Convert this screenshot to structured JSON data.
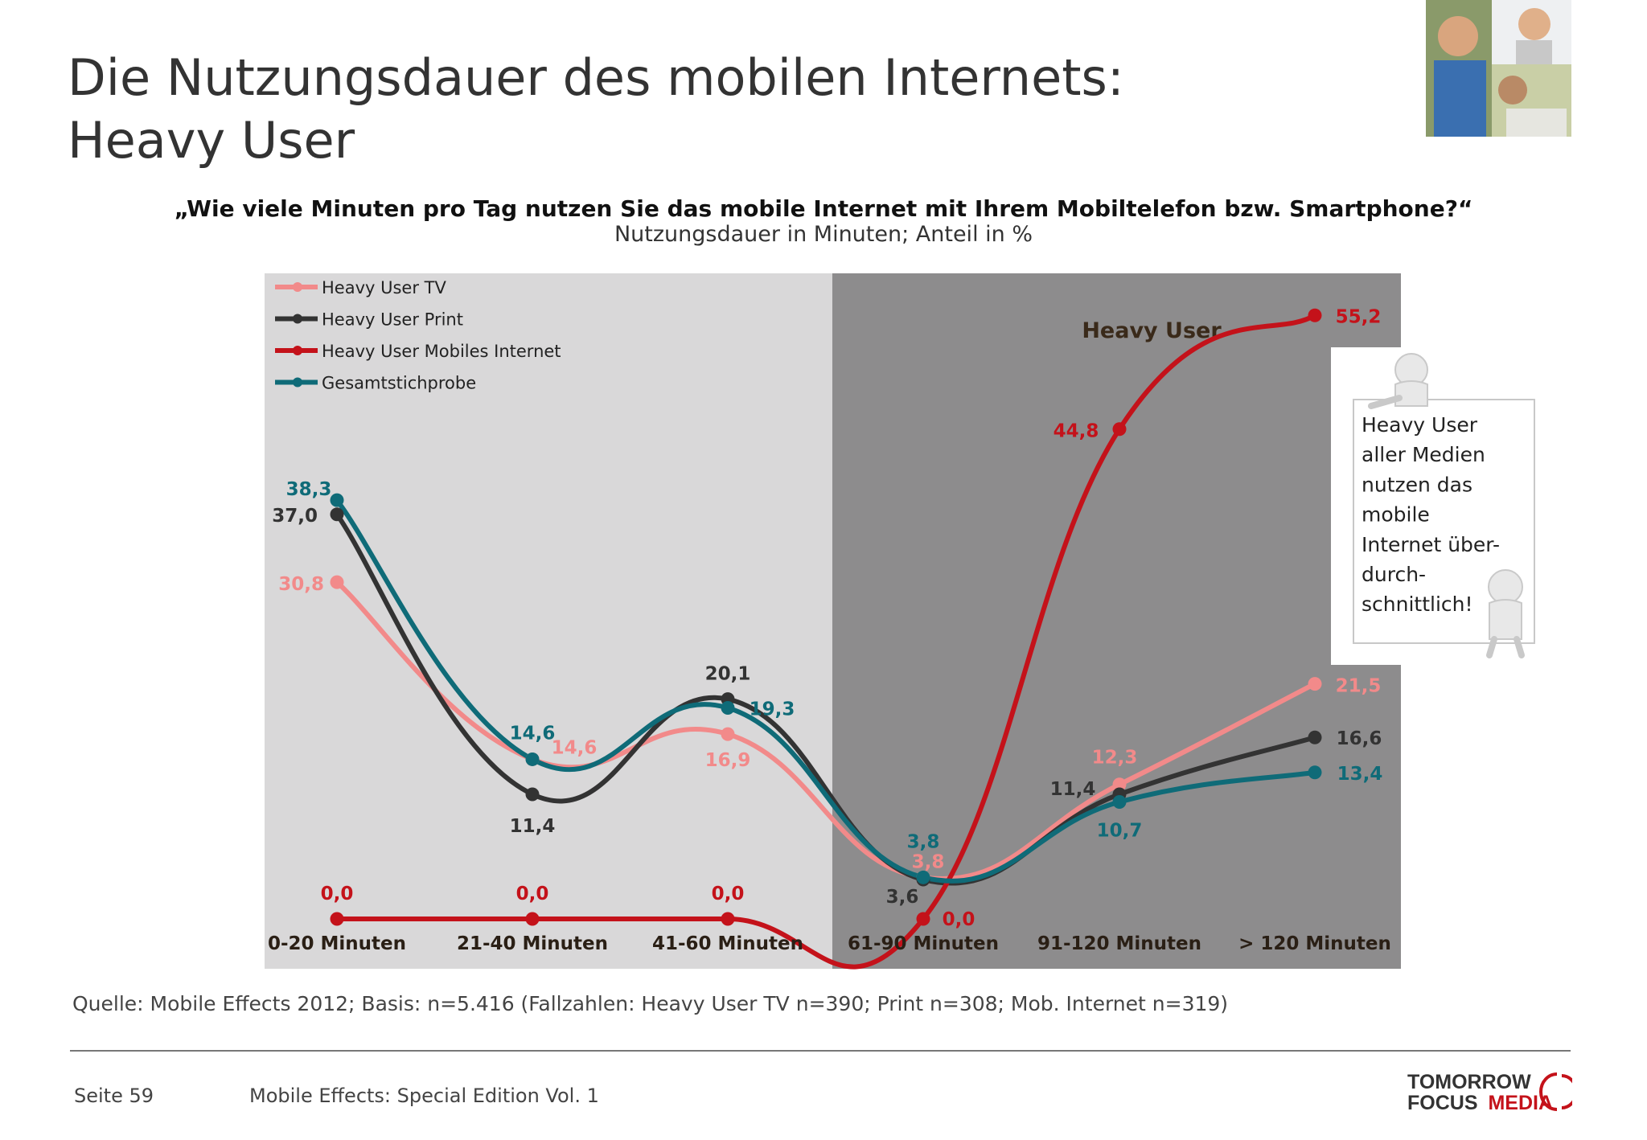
{
  "title": {
    "line1": "Die Nutzungsdauer des mobilen Internets:",
    "line2": "Heavy User"
  },
  "question": "„Wie viele Minuten pro Tag nutzen Sie das mobile Internet mit Ihrem Mobiltelefon bzw. Smartphone?“",
  "subtitle": "Nutzungsdauer in Minuten; Anteil in %",
  "shaded_region_label": "Heavy User",
  "callout": {
    "lines": [
      "Heavy User",
      "aller Medien",
      "nutzen das",
      "mobile",
      "Internet über-",
      "durch-",
      "schnittlich!"
    ]
  },
  "chart_data": {
    "type": "line",
    "categories": [
      "0-20 Minuten",
      "21-40 Minuten",
      "41-60 Minuten",
      "61-90 Minuten",
      "91-120 Minuten",
      "> 120 Minuten"
    ],
    "value_labels_decimal": ",",
    "legend_position": "top-left",
    "grid": false,
    "highlighted_categories": [
      "61-90 Minuten",
      "91-120 Minuten",
      "> 120 Minuten"
    ],
    "series": [
      {
        "name": "Heavy User TV",
        "color": "#f28a8a",
        "values": [
          30.8,
          14.6,
          16.9,
          3.8,
          12.3,
          21.5
        ]
      },
      {
        "name": "Heavy User Print",
        "color": "#333333",
        "values": [
          37.0,
          11.4,
          20.1,
          3.6,
          11.4,
          16.6
        ]
      },
      {
        "name": "Heavy User Mobiles Internet",
        "color": "#c4121a",
        "values": [
          0.0,
          0.0,
          0.0,
          0.0,
          44.8,
          55.2
        ]
      },
      {
        "name": "Gesamtstichprobe",
        "color": "#0f6b78",
        "values": [
          38.3,
          14.6,
          19.3,
          3.8,
          10.7,
          13.4
        ]
      }
    ]
  },
  "source": "Quelle: Mobile Effects 2012; Basis: n=5.416 (Fallzahlen: Heavy User TV n=390; Print n=308; Mob. Internet n=319)",
  "footer": {
    "page": "Seite 59",
    "title": "Mobile Effects: Special Edition Vol. 1"
  },
  "logo": {
    "line1": "TOMORROW",
    "line2a": "FOCUS",
    "line2b": "MEDIA"
  }
}
